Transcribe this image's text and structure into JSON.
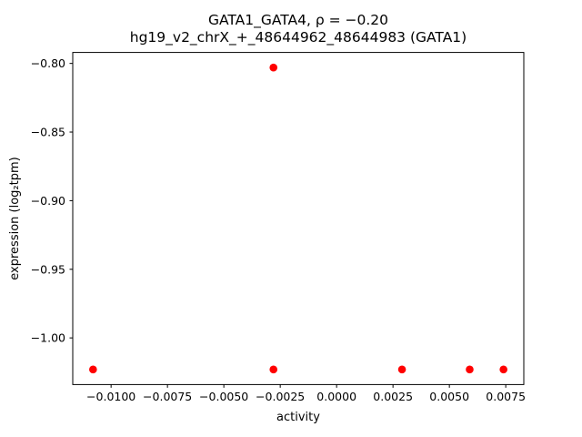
{
  "title": {
    "line1": "GATA1_GATA4, ρ = −0.20",
    "line2": "hg19_v2_chrX_+_48644962_48644983 (GATA1)"
  },
  "chart_data": {
    "type": "scatter",
    "title": "GATA1_GATA4, ρ = −0.20\nhg19_v2_chrX_+_48644962_48644983 (GATA1)",
    "xlabel": "activity",
    "ylabel": "expression (log₂tpm)",
    "xlim": [
      -0.0117,
      0.0083
    ],
    "ylim": [
      -1.034,
      -0.792
    ],
    "grid": false,
    "legend": "none",
    "marker": {
      "shape": "circle",
      "color": "#ff0000",
      "radius_px": 4.3
    },
    "xticks": {
      "values": [
        -0.01,
        -0.0075,
        -0.005,
        -0.0025,
        0.0,
        0.0025,
        0.005,
        0.0075
      ],
      "labels": [
        "−0.0100",
        "−0.0075",
        "−0.0050",
        "−0.0025",
        "0.0000",
        "0.0025",
        "0.0050",
        "0.0075"
      ]
    },
    "yticks": {
      "values": [
        -0.8,
        -0.85,
        -0.9,
        -0.95,
        -1.0
      ],
      "labels": [
        "−0.80",
        "−0.85",
        "−0.90",
        "−0.95",
        "−1.00"
      ]
    },
    "points": [
      {
        "x": -0.0108,
        "y": -1.023
      },
      {
        "x": -0.0028,
        "y": -1.023
      },
      {
        "x": -0.0028,
        "y": -0.803
      },
      {
        "x": 0.0029,
        "y": -1.023
      },
      {
        "x": 0.0059,
        "y": -1.023
      },
      {
        "x": 0.0074,
        "y": -1.023
      }
    ]
  }
}
